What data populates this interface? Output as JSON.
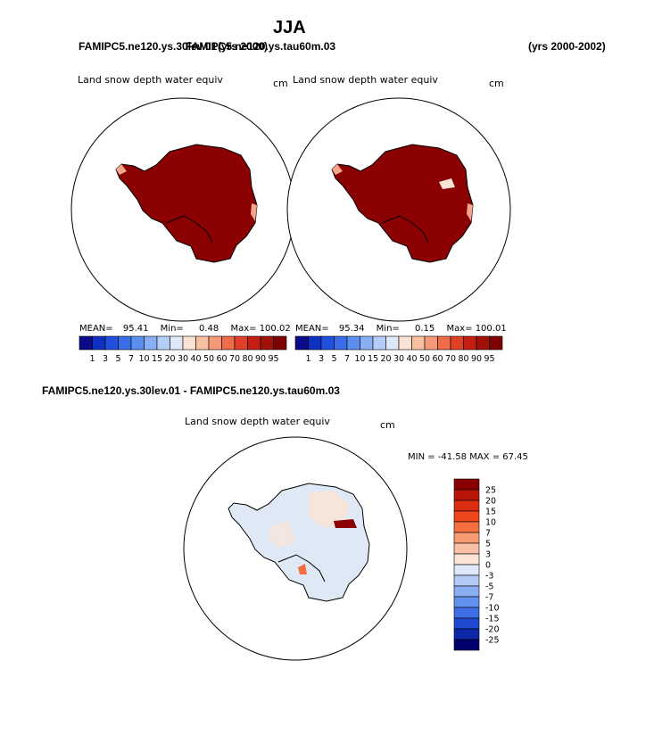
{
  "page": {
    "season": "JJA",
    "case_a": "FAMIPC5.ne120.ys.30lev.01",
    "case_b_overlap": "FAMIPC5.ne120.ys.tau60m.03",
    "case_a_years": "(yrs 2000)",
    "case_b_years": "(yrs 2000-2002)",
    "diff_title": "FAMIPC5.ne120.ys.30lev.01 - FAMIPC5.ne120.ys.tau60m.03"
  },
  "panels": [
    {
      "variable": "Land snow depth water equiv",
      "units": "cm",
      "mean_label": "MEAN=",
      "mean": "95.41",
      "min_label": "Min=",
      "min": "0.48",
      "max_label": "Max=",
      "max": "100.02"
    },
    {
      "variable": "Land snow depth water equiv",
      "units": "cm",
      "mean_label": "MEAN=",
      "mean": "95.34",
      "min_label": "Min=",
      "min": "0.15",
      "max_label": "Max=",
      "max": "100.01"
    }
  ],
  "diff_panel": {
    "variable": "Land snow depth water equiv",
    "units": "cm",
    "minmax": "MIN = -41.58  MAX =  67.45"
  },
  "colorbar_top": {
    "labels": [
      "1",
      "3",
      "5",
      "7",
      "10",
      "15",
      "20",
      "30",
      "40",
      "50",
      "60",
      "70",
      "80",
      "90",
      "95"
    ],
    "colors": [
      "#0b0b8a",
      "#1030c0",
      "#2150dc",
      "#3a6ee8",
      "#5c8ef0",
      "#88aef4",
      "#b4cdf6",
      "#dde8f8",
      "#fbe2d2",
      "#f7c0a0",
      "#f49a78",
      "#ee6c4a",
      "#e0402a",
      "#c41e12",
      "#a01208",
      "#7e0000"
    ]
  },
  "colorbar_diff": {
    "labels": [
      "25",
      "20",
      "15",
      "10",
      "7",
      "5",
      "3",
      "0",
      "-3",
      "-5",
      "-7",
      "-10",
      "-15",
      "-20",
      "-25"
    ],
    "colors": [
      "#8a0000",
      "#b81408",
      "#dc2c12",
      "#f0461e",
      "#f4703e",
      "#f69a72",
      "#f8c0a4",
      "#fbe4d6",
      "#dce8f8",
      "#b2caf4",
      "#8aaef2",
      "#6290ee",
      "#3e6ee6",
      "#2048d0",
      "#0c28a8",
      "#00006e"
    ]
  },
  "map_colors": {
    "land_high": "#8b0000",
    "diff_fill": "#dfe9f6",
    "diff_warm": "#fbe3d5",
    "outline": "#000000"
  }
}
